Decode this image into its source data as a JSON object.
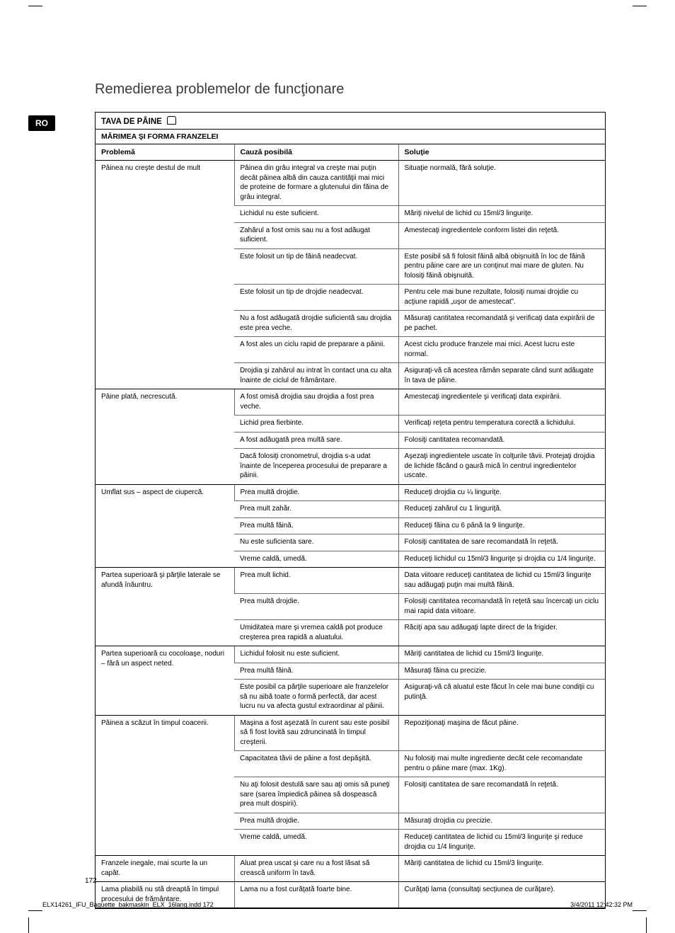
{
  "lang_code": "RO",
  "title": "Remedierea problemelor de funcţionare",
  "section_title": "TAVA DE PÂINE",
  "subsection_title": "MĂRIMEA ŞI FORMA FRANZELEI",
  "columns": {
    "problem": "Problemă",
    "cause": "Cauză posibilă",
    "solution": "Soluţie"
  },
  "groups": [
    {
      "problem": "Pâinea nu creşte destul de mult",
      "rows": [
        {
          "cause": "Pâinea din grâu integral va creşte mai puţin decât pâinea albă din cauza cantităţii mai mici de proteine de formare a glutenului din făina de grâu integral.",
          "solution": "Situaţie normală, fără soluţie."
        },
        {
          "cause": "Lichidul nu este suficient.",
          "solution": "Măriţi nivelul de lichid cu 15ml/3 linguriţe."
        },
        {
          "cause": "Zahărul a fost omis sau nu a fost adăugat suficient.",
          "solution": "Amestecaţi ingredientele conform listei din reţetă."
        },
        {
          "cause": "Este folosit un tip de făină neadecvat.",
          "solution": "Este posibil să fi folosit făină albă obişnuită în loc de făină pentru pâine care are un conţinut mai mare de gluten. Nu folosiţi făină obişnuită."
        },
        {
          "cause": "Este folosit un tip de drojdie neadecvat.",
          "solution": "Pentru cele mai bune rezultate, folosiţi numai drojdie cu acţiune rapidă „uşor de amestecat”."
        },
        {
          "cause": "Nu a fost adăugată drojdie suficientă sau drojdia este prea veche.",
          "solution": "Măsuraţi cantitatea recomandată şi verificaţi data expirării de pe pachet."
        },
        {
          "cause": "A fost ales un ciclu rapid de preparare a pâinii.",
          "solution": "Acest ciclu produce franzele mai mici. Acest lucru este normal."
        },
        {
          "cause": "Drojdia şi zahărul au intrat în contact una cu alta înainte de ciclul de frământare.",
          "solution": "Asiguraţi-vă că acestea rămân separate când sunt adăugate în tava de pâine."
        }
      ]
    },
    {
      "problem": "Pâine plată, necrescută.",
      "rows": [
        {
          "cause": "A fost omisă drojdia sau drojdia a fost prea veche.",
          "solution": "Amestecaţi ingredientele şi verificaţi data expirării."
        },
        {
          "cause": "Lichid prea fierbinte.",
          "solution": "Verificaţi reţeta pentru temperatura corectă a lichidului."
        },
        {
          "cause": "A fost adăugată prea multă sare.",
          "solution": "Folosiţi cantitatea recomandată."
        },
        {
          "cause": "Dacă folosiţi cronometrul, drojdia s-a udat înainte de începerea procesului de preparare a pâinii.",
          "solution": "Aşezaţi ingredientele uscate în colţurile tăvii. Protejaţi drojdia de lichide făcând o gaură mică în centrul ingredientelor uscate."
        }
      ]
    },
    {
      "problem": "Umflat sus – aspect de ciupercă.",
      "rows": [
        {
          "cause": "Prea multă drojdie.",
          "solution": "Reduceţi drojdia cu ¼ linguriţe."
        },
        {
          "cause": "Prea mult zahăr.",
          "solution": "Reduceţi zahărul cu 1 linguriţă."
        },
        {
          "cause": "Prea multă făină.",
          "solution": "Reduceţi făina cu 6 până la 9 linguriţe."
        },
        {
          "cause": "Nu este suficienta sare.",
          "solution": "Folosiţi cantitatea de sare recomandată în reţetă."
        },
        {
          "cause": "Vreme caldă, umedă.",
          "solution": "Reduceţi lichidul cu 15ml/3  linguriţe şi drojdia cu 1/4 linguriţe."
        }
      ]
    },
    {
      "problem": "Partea superioară şi părţile laterale se afundă înăuntru.",
      "rows": [
        {
          "cause": "Prea mult lichid.",
          "solution": "Data viitoare reduceţi cantitatea de lichid cu 15ml/3 linguriţe sau adăugaţi puţin mai multă făină."
        },
        {
          "cause": "Prea multă drojdie.",
          "solution": "Folosiţi cantitatea recomandată în reţetă sau încercaţi un ciclu mai rapid data viitoare."
        },
        {
          "cause": "Umiditatea mare şi vremea caldă pot produce creşterea prea rapidă a aluatului.",
          "solution": "Răciţi apa sau adăugaţi lapte direct de la frigider."
        }
      ]
    },
    {
      "problem": "Partea superioară cu cocoloaşe, noduri – fără un aspect neted.",
      "rows": [
        {
          "cause": "Lichidul folosit nu este suficient.",
          "solution": "Măriţi cantitatea de lichid cu 15ml/3 linguriţe."
        },
        {
          "cause": "Prea multă făină.",
          "solution": "Măsuraţi făina cu precizie."
        },
        {
          "cause": "Este posibil ca părţile superioare ale franzelelor să nu aibă toate o formă perfectă, dar acest lucru nu va afecta gustul extraordinar al pâinii.",
          "solution": "Asiguraţi-vă că aluatul este făcut în cele mai bune condiţii cu putinţă."
        }
      ]
    },
    {
      "problem": "Pâinea a scăzut în timpul coacerii.",
      "rows": [
        {
          "cause": "Maşina a fost aşezată în curent sau este posibil să fi fost lovită sau zdruncinată în timpul creşterii.",
          "solution": "Repoziţionaţi maşina de făcut pâine."
        },
        {
          "cause": "Capacitatea tăvii de pâine a fost depăşită.",
          "solution": "Nu folosiţi mai multe ingrediente decât cele recomandate pentru o pâine mare (max. 1Kg)."
        },
        {
          "cause": "Nu aţi folosit destulă sare sau aţi omis să puneţi sare (sarea împiedică pâinea să dospească prea mult  dospirii).",
          "solution": "Folosiţi cantitatea de sare recomandată în reţetă."
        },
        {
          "cause": "Prea multă drojdie.",
          "solution": "Măsuraţi drojdia cu precizie."
        },
        {
          "cause": "Vreme caldă, umedă.",
          "solution": "Reduceţi cantitatea de lichid cu 15ml/3 linguriţe şi reduce drojdia cu 1/4 linguriţe."
        }
      ]
    },
    {
      "problem": "Franzele inegale, mai scurte la un capăt.",
      "rows": [
        {
          "cause": "Aluat prea uscat şi care nu a fost lăsat să crească uniform în tavă.",
          "solution": "Măriţi cantitatea de lichid cu 15ml/3  linguriţe."
        }
      ]
    },
    {
      "problem": "Lama pliabilă nu stă dreaptă în timpul procesului de frământare.",
      "rows": [
        {
          "cause": "Lama nu a fost curăţată foarte bine.",
          "solution": "Curăţaţi lama (consultaţi secţiunea de curăţare)."
        }
      ]
    }
  ],
  "page_number": "172",
  "footer_left": "ELX14261_IFU_Baguette_bakmaskin_ELX_16lang.indd   172",
  "footer_right": "3/4/2011   12:42:32 PM"
}
